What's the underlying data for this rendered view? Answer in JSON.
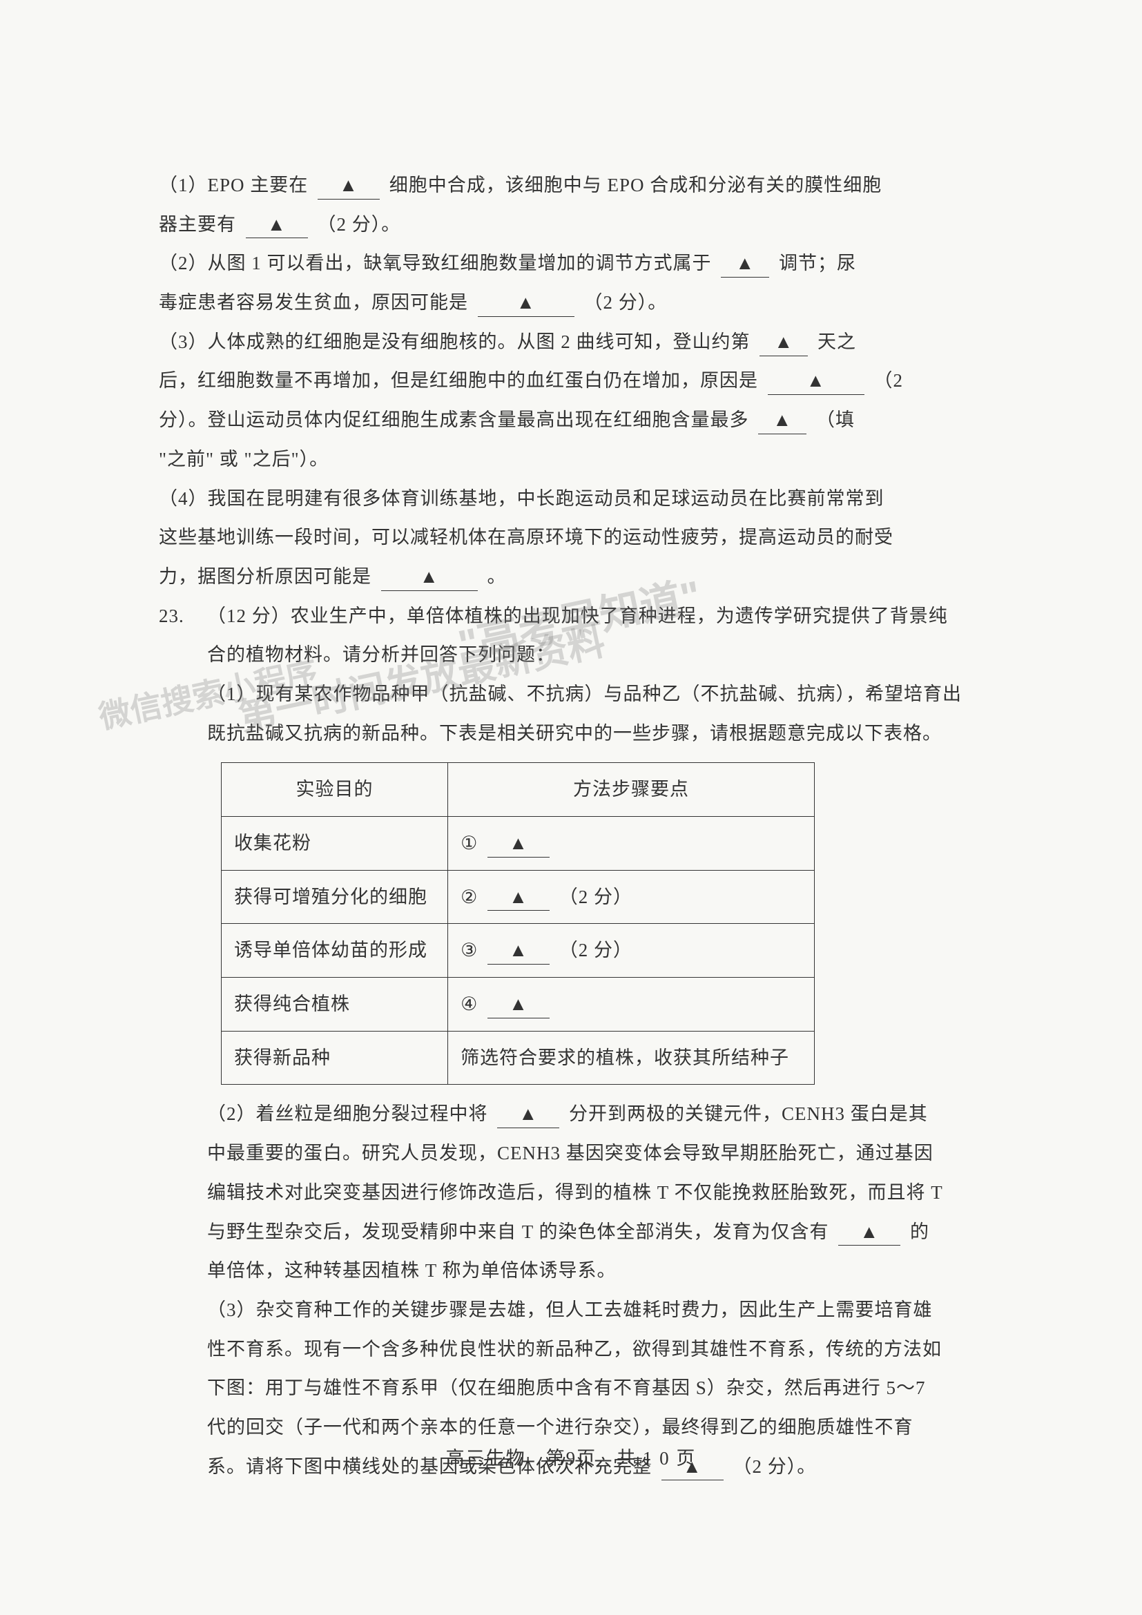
{
  "q1": {
    "l1a": "（1）EPO 主要在",
    "l1b": "细胞中合成，该细胞中与 EPO 合成和分泌有关的膜性细胞",
    "l2a": "器主要有",
    "l2b": "（2 分）。"
  },
  "q2": {
    "l1a": "（2）从图 1 可以看出，缺氧导致红细胞数量增加的调节方式属于",
    "l1b": "调节；尿",
    "l2a": "毒症患者容易发生贫血，原因可能是",
    "l2b": "（2 分）。"
  },
  "q3": {
    "l1a": "（3）人体成熟的红细胞是没有细胞核的。从图 2 曲线可知，登山约第",
    "l1b": "天之",
    "l2a": "后，红细胞数量不再增加，但是红细胞中的血红蛋白仍在增加，原因是",
    "l2b": "（2",
    "l3a": "分）。登山运动员体内促红细胞生成素含量最高出现在红细胞含量最多",
    "l3b": "（填",
    "l4": "\"之前\" 或 \"之后\"）。"
  },
  "q4": {
    "l1": "（4）我国在昆明建有很多体育训练基地，中长跑运动员和足球运动员在比赛前常常到",
    "l2": "这些基地训练一段时间，可以减轻机体在高原环境下的运动性疲劳，提高运动员的耐受",
    "l3a": "力，据图分析原因可能是",
    "l3b": "。"
  },
  "q23": {
    "num": "23.",
    "intro1": "（12 分）农业生产中，单倍体植株的出现加快了育种进程，为遗传学研究提供了背景纯",
    "intro2": "合的植物材料。请分析并回答下列问题：",
    "p1l1": "（1）现有某农作物品种甲（抗盐碱、不抗病）与品种乙（不抗盐碱、抗病），希望培育出",
    "p1l2": "既抗盐碱又抗病的新品种。下表是相关研究中的一些步骤，请根据题意完成以下表格。",
    "table": {
      "head_left": "实验目的",
      "head_right": "方法步骤要点",
      "r1_left": "收集花粉",
      "r1_right_num": "①",
      "r2_left": "获得可增殖分化的细胞",
      "r2_right_num": "②",
      "r2_right_tail": "（2 分）",
      "r3_left": "诱导单倍体幼苗的形成",
      "r3_right_num": "③",
      "r3_right_tail": "（2 分）",
      "r4_left": "获得纯合植株",
      "r4_right_num": "④",
      "r5_left": "获得新品种",
      "r5_right": "筛选符合要求的植株，收获其所结种子"
    },
    "p2l1a": "（2）着丝粒是细胞分裂过程中将",
    "p2l1b": "分开到两极的关键元件，CENH3 蛋白是其",
    "p2l2": "中最重要的蛋白。研究人员发现，CENH3 基因突变体会导致早期胚胎死亡，通过基因",
    "p2l3": "编辑技术对此突变基因进行修饰改造后，得到的植株 T 不仅能挽救胚胎致死，而且将 T",
    "p2l4a": "与野生型杂交后，发现受精卵中来自 T 的染色体全部消失，发育为仅含有",
    "p2l4b": "的",
    "p2l5": "单倍体，这种转基因植株 T 称为单倍体诱导系。",
    "p3l1": "（3）杂交育种工作的关键步骤是去雄，但人工去雄耗时费力，因此生产上需要培育雄",
    "p3l2": "性不育系。现有一个含多种优良性状的新品种乙，欲得到其雄性不育系，传统的方法如",
    "p3l3": "下图：用丁与雄性不育系甲（仅在细胞质中含有不育基因 S）杂交，然后再进行 5～7",
    "p3l4": "代的回交（子一代和两个亲本的任意一个进行杂交），最终得到乙的细胞质雄性不育",
    "p3l5a": "系。请将下图中横线处的基因或染色体依次补充完整",
    "p3l5b": "（2 分）。"
  },
  "footer": {
    "text": "高三生物　第9页　共 1 0 页"
  },
  "blank_mark": "▲",
  "watermark": {
    "w1": "\"高考早知道\"",
    "w2": "第一时间发放最新资料",
    "w3": "微信搜索小程序"
  }
}
